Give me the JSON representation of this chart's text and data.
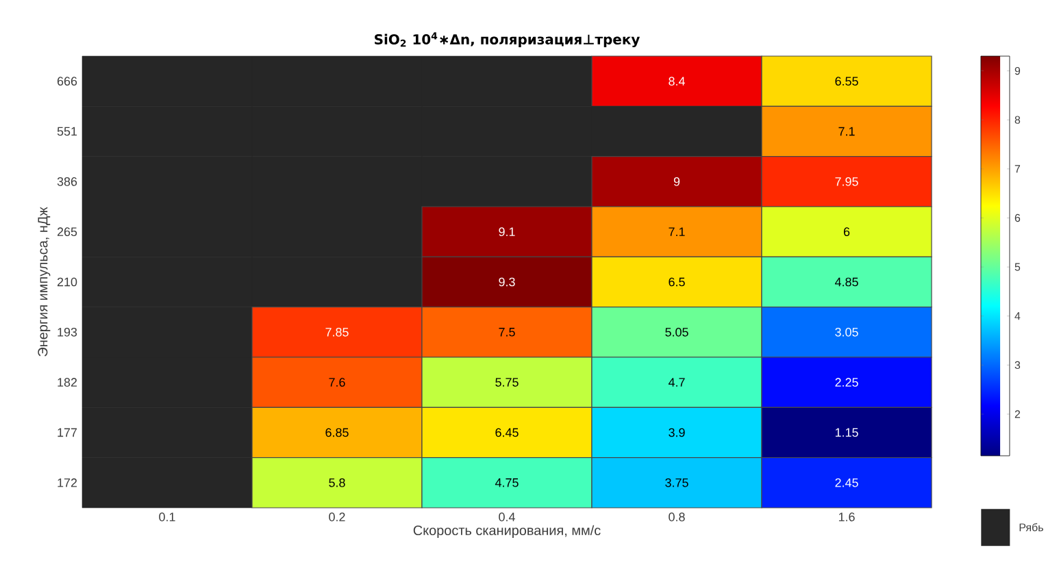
{
  "chart_data": {
    "type": "heatmap",
    "title": "SiO$_{2}$ 10$^{4}$∗Δn, поляризация⊥треку",
    "xlabel": "Скорость сканирования, мм/с",
    "ylabel": "Энергия импульса, нДж",
    "categories": [
      "0.1",
      "0.2",
      "0.4",
      "0.8",
      "1.6"
    ],
    "y_categories": [
      "666",
      "551",
      "386",
      "265",
      "210",
      "193",
      "182",
      "177",
      "172"
    ],
    "cells": [
      [
        null,
        null,
        null,
        8.4,
        6.55
      ],
      [
        null,
        null,
        null,
        null,
        7.1
      ],
      [
        null,
        null,
        null,
        9,
        7.95
      ],
      [
        null,
        null,
        9.1,
        7.1,
        6
      ],
      [
        null,
        null,
        9.3,
        6.5,
        4.85
      ],
      [
        null,
        7.85,
        7.5,
        5.05,
        3.05
      ],
      [
        null,
        7.6,
        5.75,
        4.7,
        2.25
      ],
      [
        null,
        6.85,
        6.45,
        3.9,
        1.15
      ],
      [
        null,
        5.8,
        4.75,
        3.75,
        2.45
      ]
    ],
    "data_labels": true,
    "clim": [
      1.15,
      9.3
    ],
    "cticks": [
      2,
      3,
      4,
      5,
      6,
      7,
      8,
      9
    ],
    "annotations": [
      "Рябь"
    ]
  }
}
